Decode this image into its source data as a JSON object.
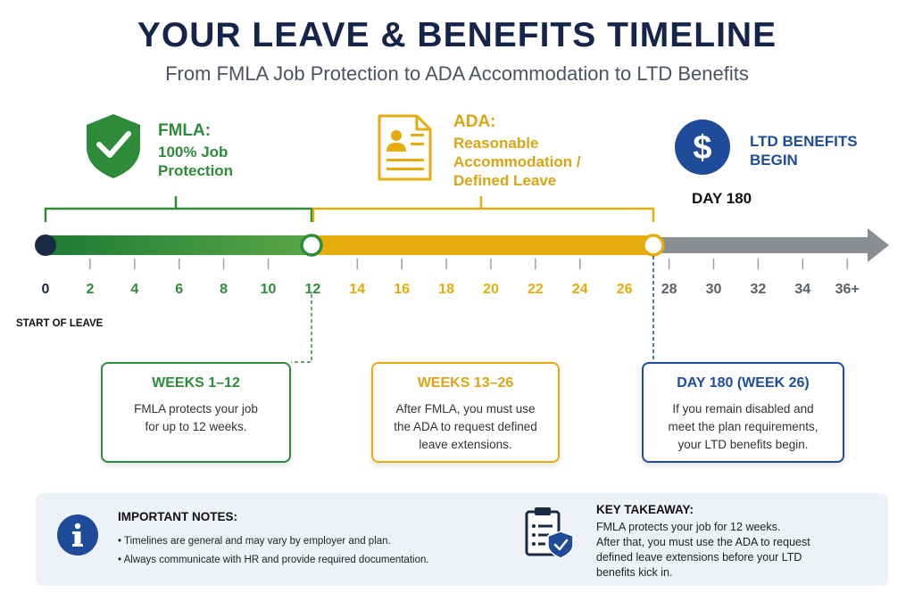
{
  "header": {
    "title": "YOUR LEAVE & BENEFITS TIMELINE",
    "subtitle": "From FMLA Job Protection to ADA Accommodation to LTD Benefits"
  },
  "colors": {
    "fmla": "#2e8b3a",
    "ada": "#e6ac0c",
    "ltd": "#1f4c9a",
    "future": "#8a8d91",
    "title": "#14244a"
  },
  "phases": {
    "fmla": {
      "icon": "shield-check-icon",
      "title": "FMLA:",
      "line1": "100% Job",
      "line2": "Protection"
    },
    "ada": {
      "icon": "document-person-icon",
      "title": "ADA:",
      "line1": "Reasonable",
      "line2": "Accommodation /",
      "line3": "Defined Leave"
    },
    "ltd": {
      "icon": "dollar-icon",
      "line1": "LTD BENEFITS",
      "line2": "BEGIN",
      "marker": "DAY 180"
    }
  },
  "timeline": {
    "ticks": [
      "0",
      "2",
      "4",
      "6",
      "8",
      "10",
      "12",
      "14",
      "16",
      "18",
      "20",
      "22",
      "24",
      "26",
      "28",
      "30",
      "32",
      "34",
      "36+"
    ],
    "start_label": "START OF LEAVE"
  },
  "cards": [
    {
      "title": "WEEKS 1–12",
      "line1": "FMLA protects your job",
      "line2": "for up to 12 weeks."
    },
    {
      "title": "WEEKS 13–26",
      "line1": "After FMLA, you must use",
      "line2": "the ADA to request defined",
      "line3": "leave extensions."
    },
    {
      "title": "DAY 180 (WEEK 26)",
      "line1": "If you remain disabled and",
      "line2": "meet the plan requirements,",
      "line3": "your LTD benefits begin."
    }
  ],
  "notes": {
    "icon": "info-icon",
    "title": "IMPORTANT NOTES:",
    "items": [
      "Timelines are general and may vary by employer and plan.",
      "Always communicate with HR and provide required documentation."
    ]
  },
  "takeaway": {
    "icon": "clipboard-shield-icon",
    "title": "KEY TAKEAWAY:",
    "line1": "FMLA protects your job for 12 weeks.",
    "line2": "After that, you must use the ADA to request",
    "line3": "defined leave extensions before your LTD",
    "line4": "benefits kick in."
  }
}
